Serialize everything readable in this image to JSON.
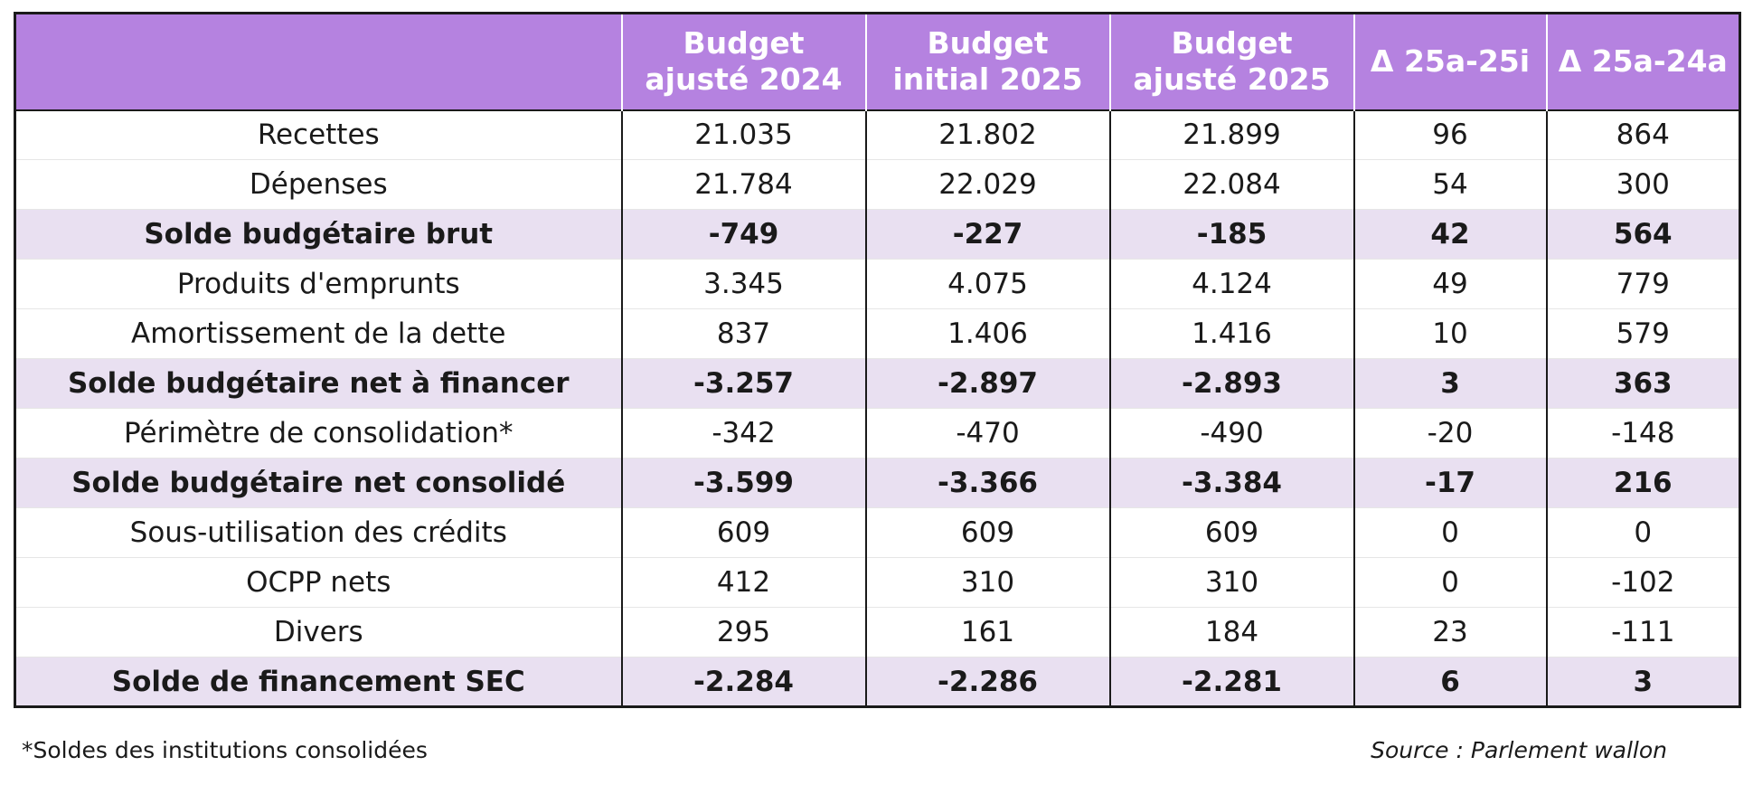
{
  "table": {
    "headers": [
      "",
      "Budget\najusté 2024",
      "Budget\ninitial 2025",
      "Budget\najusté 2025",
      "Δ 25a-25i",
      "Δ 25a-24a"
    ],
    "rows": [
      {
        "label": "Recettes",
        "cells": [
          "21.035",
          "21.802",
          "21.899",
          "96",
          "864"
        ],
        "bold": false
      },
      {
        "label": "Dépenses",
        "cells": [
          "21.784",
          "22.029",
          "22.084",
          "54",
          "300"
        ],
        "bold": false
      },
      {
        "label": "Solde budgétaire brut",
        "cells": [
          "-749",
          "-227",
          "-185",
          "42",
          "564"
        ],
        "bold": true
      },
      {
        "label": "Produits d'emprunts",
        "cells": [
          "3.345",
          "4.075",
          "4.124",
          "49",
          "779"
        ],
        "bold": false
      },
      {
        "label": "Amortissement de la dette",
        "cells": [
          "837",
          "1.406",
          "1.416",
          "10",
          "579"
        ],
        "bold": false
      },
      {
        "label": "Solde budgétaire net à financer",
        "cells": [
          "-3.257",
          "-2.897",
          "-2.893",
          "3",
          "363"
        ],
        "bold": true
      },
      {
        "label": "Périmètre de consolidation*",
        "cells": [
          "-342",
          "-470",
          "-490",
          "-20",
          "-148"
        ],
        "bold": false
      },
      {
        "label": "Solde budgétaire net consolidé",
        "cells": [
          "-3.599",
          "-3.366",
          "-3.384",
          "-17",
          "216"
        ],
        "bold": true
      },
      {
        "label": "Sous-utilisation des crédits",
        "cells": [
          "609",
          "609",
          "609",
          "0",
          "0"
        ],
        "bold": false
      },
      {
        "label": "OCPP nets",
        "cells": [
          "412",
          "310",
          "310",
          "0",
          "-102"
        ],
        "bold": false
      },
      {
        "label": "Divers",
        "cells": [
          "295",
          "161",
          "184",
          "23",
          "-111"
        ],
        "bold": false
      },
      {
        "label": "Solde de financement SEC",
        "cells": [
          "-2.284",
          "-2.286",
          "-2.281",
          "6",
          "3"
        ],
        "bold": true
      }
    ]
  },
  "footnote": "*Soldes des institutions consolidées",
  "source": "Source : Parlement wallon",
  "colors": {
    "header_bg": "#b582e0",
    "highlight_row_bg": "#e9e0f1"
  }
}
